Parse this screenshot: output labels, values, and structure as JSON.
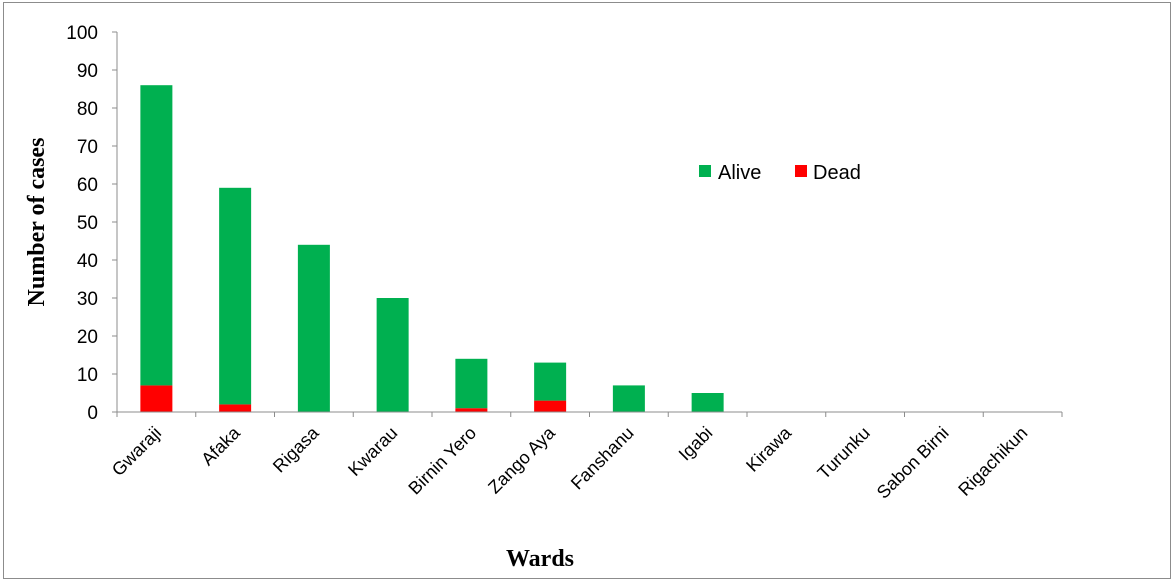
{
  "chart_data": {
    "type": "bar",
    "stacked": true,
    "title": "",
    "xlabel": "Wards",
    "ylabel": "Number of cases",
    "ylim": [
      0,
      100
    ],
    "yticks": [
      0,
      10,
      20,
      30,
      40,
      50,
      60,
      70,
      80,
      90,
      100
    ],
    "grid": false,
    "legend_position": "right-middle",
    "categories": [
      "Gwaraji",
      "Afaka",
      "Rigasa",
      "Kwarau",
      "Birnin Yero",
      "Zango Aya",
      "Fanshanu",
      "Igabi",
      "Kirawa",
      "Turunku",
      "Sabon Birni",
      "Rigachikun"
    ],
    "series": [
      {
        "name": "Dead",
        "color": "#ff0000",
        "values": [
          7,
          2,
          0,
          0,
          1,
          3,
          0,
          0,
          0,
          0,
          0,
          0
        ]
      },
      {
        "name": "Alive",
        "color": "#00b050",
        "values": [
          79,
          57,
          44,
          30,
          13,
          10,
          7,
          5,
          0,
          0,
          0,
          0
        ]
      }
    ],
    "legend_order": [
      "Alive",
      "Dead"
    ]
  }
}
